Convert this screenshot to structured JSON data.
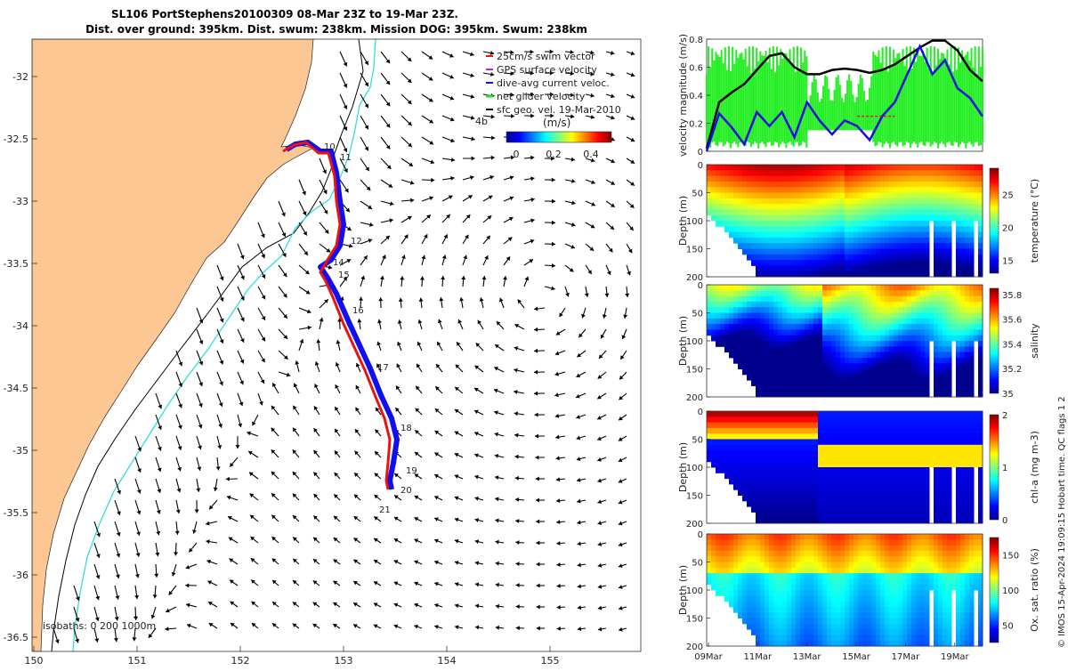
{
  "title_lines": [
    "SL106 PortStephens20100309 08-Mar 23Z to 19-Mar 23Z.",
    "Dist. over ground: 395km. Dist. swum: 238km. Mission DOG: 395km. Swum: 238km"
  ],
  "map": {
    "x_ticks": [
      "150",
      "151",
      "152",
      "153",
      "154",
      "155"
    ],
    "y_ticks": [
      "-32",
      "-32.5",
      "-33",
      "-33.5",
      "-34",
      "-34.5",
      "-35",
      "-35.5",
      "-36",
      "-36.5"
    ],
    "legend": [
      "25cm/s swim vector",
      "GPS surface velocity",
      "dive-avg current veloc.",
      "net glider velocity",
      "sfc geo. vel. 19-Mar-2010"
    ],
    "legend_extra": "4b",
    "colorbar_label": "(m/s)",
    "colorbar_ticks": [
      "0",
      "0.2",
      "0.4"
    ],
    "isobaths_label": "isobaths: 0   200  1000m",
    "day_labels": [
      "10",
      "11",
      "12",
      "14",
      "15",
      "16",
      "17",
      "18",
      "19",
      "20",
      "21"
    ],
    "colors": {
      "land": "#fdc794",
      "isobath_200": "#000000",
      "isobath_1000": "#33dddd",
      "track_dive": "#1010ee",
      "track_net": "#ee1111",
      "arrow": "#000000"
    }
  },
  "chart_data": [
    {
      "type": "line",
      "title": "",
      "ylabel": "velocity magnitude (m/s)",
      "ylim": [
        0,
        0.8
      ],
      "y_ticks": [
        "0",
        "0.2",
        "0.4",
        "0.6",
        "0.8"
      ],
      "x_range": [
        "08-Mar 23Z",
        "19-Mar 23Z"
      ],
      "series": [
        {
          "color": "#000000",
          "x": [
            0.0,
            0.5,
            1.0,
            1.5,
            2.0,
            2.5,
            3.0,
            3.5,
            4.0,
            4.5,
            5.0,
            5.5,
            6.0,
            6.5,
            7.0,
            7.5,
            8.0,
            8.5,
            9.0,
            9.5,
            10.0,
            10.5,
            11.0
          ],
          "values": [
            0.02,
            0.35,
            0.42,
            0.48,
            0.58,
            0.68,
            0.7,
            0.6,
            0.55,
            0.55,
            0.58,
            0.59,
            0.58,
            0.56,
            0.58,
            0.62,
            0.68,
            0.74,
            0.79,
            0.79,
            0.72,
            0.58,
            0.5
          ]
        },
        {
          "color": "#1111dd",
          "x": [
            0.0,
            0.5,
            1.0,
            1.5,
            2.0,
            2.5,
            3.0,
            3.5,
            4.0,
            4.5,
            5.0,
            5.5,
            6.0,
            6.5,
            7.0,
            7.5,
            8.0,
            8.5,
            9.0,
            9.5,
            10.0,
            10.5,
            11.0
          ],
          "values": [
            0.0,
            0.27,
            0.17,
            0.05,
            0.28,
            0.18,
            0.28,
            0.1,
            0.35,
            0.22,
            0.12,
            0.22,
            0.18,
            0.08,
            0.25,
            0.35,
            0.55,
            0.75,
            0.55,
            0.65,
            0.45,
            0.38,
            0.25
          ]
        },
        {
          "color": "#dd2222",
          "x": [
            6.0,
            6.5,
            7.0,
            7.5
          ],
          "values": [
            0.25,
            0.25,
            0.25,
            0.25
          ]
        }
      ]
    },
    {
      "type": "heatmap",
      "ylabel": "Depth (m)",
      "colorbar_label": "temperature (°C)",
      "y_ticks": [
        "0",
        "50",
        "100",
        "150",
        "200"
      ],
      "colorbar_ticks": [
        "15",
        "20",
        "25"
      ],
      "clim": [
        13,
        29
      ]
    },
    {
      "type": "heatmap",
      "ylabel": "Depth (m)",
      "colorbar_label": "salinity",
      "y_ticks": [
        "0",
        "50",
        "100",
        "150",
        "200"
      ],
      "colorbar_ticks": [
        "35",
        "35.2",
        "35.4",
        "35.6",
        "35.8"
      ],
      "clim": [
        35.0,
        35.85
      ]
    },
    {
      "type": "heatmap",
      "ylabel": "Depth (m)",
      "colorbar_label": "chl-a (mg m-3)",
      "y_ticks": [
        "0",
        "50",
        "100",
        "150",
        "200"
      ],
      "colorbar_ticks": [
        "0",
        "1",
        "2"
      ],
      "clim": [
        0,
        2
      ]
    },
    {
      "type": "heatmap",
      "ylabel": "Depth (m)",
      "colorbar_label": "Ox. sat. ratio (%)",
      "y_ticks": [
        "0",
        "50",
        "100",
        "150",
        "200"
      ],
      "colorbar_ticks": [
        "50",
        "100",
        "150"
      ],
      "clim": [
        25,
        175
      ],
      "x_ticks": [
        "09Mar",
        "11Mar",
        "13Mar",
        "15Mar",
        "17Mar",
        "19Mar"
      ]
    }
  ],
  "footer": "© IMOS 15-Apr-2024 19:09:15 Hobart time. QC flags 1  2"
}
